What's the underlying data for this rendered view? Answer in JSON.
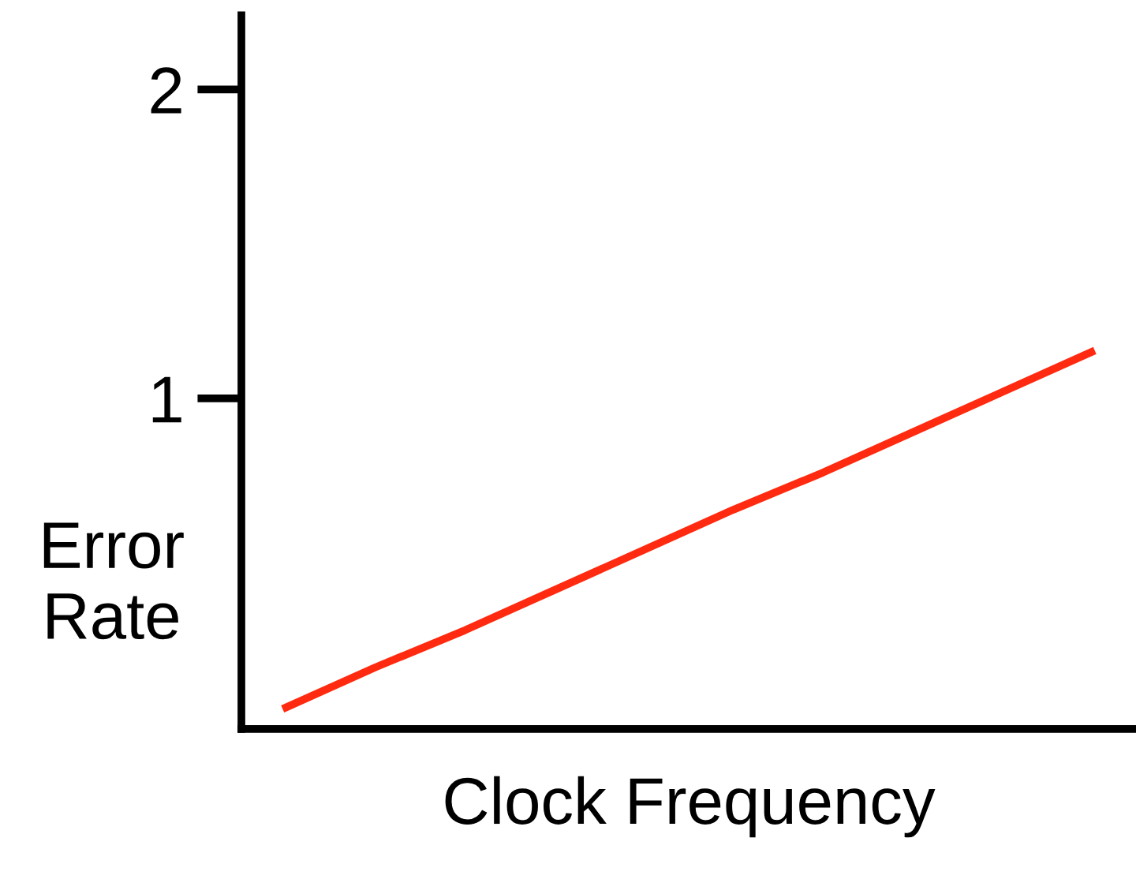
{
  "chart_data": {
    "type": "line",
    "xlabel": "Clock Frequency",
    "ylabel": "Error\nRate",
    "categories": [
      null,
      null,
      null,
      null,
      null,
      null,
      null,
      null,
      null,
      null
    ],
    "series": [
      {
        "color": "#ff2a10",
        "values": [
          0.0,
          0.13,
          0.25,
          0.38,
          0.51,
          0.64,
          0.76,
          0.89,
          1.02,
          1.15
        ]
      }
    ],
    "ylim": [
      -0.07,
      2.24
    ],
    "yticks": [
      1,
      2
    ],
    "grid": false,
    "legend": false,
    "marker": "none",
    "line_style": "solid"
  }
}
